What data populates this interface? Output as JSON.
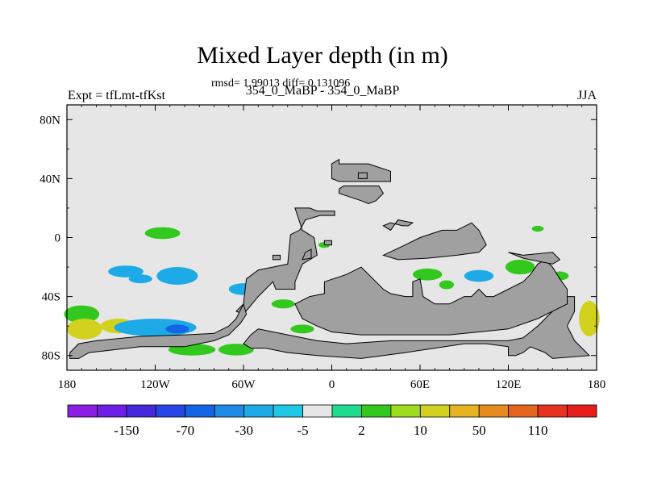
{
  "chart_data": {
    "type": "heatmap",
    "title": "Mixed Layer depth (in m)",
    "subtitle": "rmsd= 1.99013 diff= 0.131096",
    "left_label": "Expt = tfLmt-tfKst",
    "center_label": "354_0_MaBP - 354_0_MaBP",
    "right_label": "JJA",
    "x_range": [
      -180,
      180
    ],
    "y_range": [
      -90,
      90
    ],
    "x_ticks": [
      {
        "value": -180,
        "label": "180"
      },
      {
        "value": -120,
        "label": "120W"
      },
      {
        "value": -60,
        "label": "60W"
      },
      {
        "value": 0,
        "label": "0"
      },
      {
        "value": 60,
        "label": "60E"
      },
      {
        "value": 120,
        "label": "120E"
      },
      {
        "value": 180,
        "label": "180"
      }
    ],
    "y_ticks": [
      {
        "value": 80,
        "label": "80N"
      },
      {
        "value": 40,
        "label": "40N"
      },
      {
        "value": 0,
        "label": "0"
      },
      {
        "value": -40,
        "label": "40S"
      },
      {
        "value": -80,
        "label": "80S"
      }
    ],
    "colorbar": {
      "colors": [
        "#8c1ee6",
        "#6e1ee6",
        "#4628dc",
        "#2846e6",
        "#1464e6",
        "#1e8ce6",
        "#1eaae6",
        "#1ec8e6",
        "#e6e6e6",
        "#1edc8c",
        "#32c81e",
        "#a0dc1e",
        "#d2d21e",
        "#e6b41e",
        "#e68c1e",
        "#e6641e",
        "#e6321e",
        "#e61e1e"
      ],
      "labels": [
        "-150",
        "-70",
        "-30",
        "-5",
        "2",
        "10",
        "50",
        "110"
      ]
    },
    "land_polygons": [
      [
        [
          0,
          50
        ],
        [
          5,
          53
        ],
        [
          5,
          50
        ],
        [
          25,
          50
        ],
        [
          40,
          45
        ],
        [
          40,
          38
        ],
        [
          5,
          38
        ],
        [
          0,
          40
        ]
      ],
      [
        [
          -25,
          20
        ],
        [
          -15,
          20
        ],
        [
          -10,
          18
        ],
        [
          2,
          18
        ],
        [
          2,
          15
        ],
        [
          -8,
          15
        ],
        [
          -18,
          12
        ],
        [
          -20,
          8
        ],
        [
          -22,
          5
        ],
        [
          -28,
          2
        ],
        [
          -30,
          -18
        ],
        [
          -40,
          -20
        ],
        [
          -50,
          -22
        ],
        [
          -58,
          -28
        ],
        [
          -60,
          -45
        ],
        [
          -65,
          -50
        ],
        [
          -60,
          -52
        ],
        [
          -50,
          -40
        ],
        [
          -40,
          -30
        ],
        [
          -38,
          -35
        ],
        [
          -25,
          -35
        ],
        [
          -25,
          -30
        ],
        [
          -20,
          -18
        ],
        [
          -10,
          -12
        ],
        [
          -12,
          0
        ],
        [
          -20,
          5
        ]
      ],
      [
        [
          -58,
          -52
        ],
        [
          -60,
          -45
        ],
        [
          -65,
          -55
        ],
        [
          -70,
          -60
        ],
        [
          -80,
          -65
        ],
        [
          -100,
          -66
        ],
        [
          -130,
          -67
        ],
        [
          -160,
          -70
        ],
        [
          -172,
          -72
        ],
        [
          -178,
          -78
        ],
        [
          -178,
          -82
        ],
        [
          -172,
          -82
        ],
        [
          -165,
          -78
        ],
        [
          -130,
          -74
        ],
        [
          -100,
          -74
        ],
        [
          -80,
          -70
        ],
        [
          -70,
          -66
        ],
        [
          -62,
          -58
        ]
      ],
      [
        [
          -50,
          -62
        ],
        [
          -30,
          -66
        ],
        [
          -10,
          -70
        ],
        [
          10,
          -72
        ],
        [
          40,
          -70
        ],
        [
          70,
          -70
        ],
        [
          100,
          -70
        ],
        [
          120,
          -70
        ],
        [
          130,
          -68
        ],
        [
          135,
          -64
        ],
        [
          140,
          -60
        ],
        [
          145,
          -55
        ],
        [
          150,
          -50
        ],
        [
          155,
          -45
        ],
        [
          160,
          -40
        ],
        [
          165,
          -40
        ],
        [
          165,
          -50
        ],
        [
          160,
          -60
        ],
        [
          165,
          -70
        ],
        [
          170,
          -75
        ],
        [
          175,
          -80
        ],
        [
          150,
          -82
        ],
        [
          145,
          -78
        ],
        [
          135,
          -74
        ],
        [
          130,
          -78
        ],
        [
          125,
          -80
        ],
        [
          120,
          -80
        ],
        [
          120,
          -74
        ],
        [
          105,
          -72
        ],
        [
          90,
          -72
        ],
        [
          70,
          -75
        ],
        [
          50,
          -78
        ],
        [
          20,
          -82
        ],
        [
          -10,
          -80
        ],
        [
          -30,
          -78
        ],
        [
          -45,
          -75
        ],
        [
          -55,
          -75
        ],
        [
          -60,
          -72
        ],
        [
          -55,
          -66
        ]
      ],
      [
        [
          -5,
          -30
        ],
        [
          10,
          -25
        ],
        [
          20,
          -20
        ],
        [
          30,
          -30
        ],
        [
          35,
          -35
        ],
        [
          40,
          -38
        ],
        [
          50,
          -40
        ],
        [
          55,
          -40
        ],
        [
          55,
          -30
        ],
        [
          60,
          -28
        ],
        [
          62,
          -40
        ],
        [
          70,
          -45
        ],
        [
          80,
          -45
        ],
        [
          90,
          -40
        ],
        [
          95,
          -40
        ],
        [
          100,
          -35
        ],
        [
          105,
          -40
        ],
        [
          110,
          -40
        ],
        [
          120,
          -35
        ],
        [
          130,
          -30
        ],
        [
          135,
          -25
        ],
        [
          140,
          -18
        ],
        [
          145,
          -15
        ],
        [
          150,
          -20
        ],
        [
          155,
          -28
        ],
        [
          160,
          -35
        ],
        [
          160,
          -45
        ],
        [
          140,
          -55
        ],
        [
          120,
          -62
        ],
        [
          100,
          -64
        ],
        [
          80,
          -66
        ],
        [
          60,
          -66
        ],
        [
          40,
          -66
        ],
        [
          20,
          -66
        ],
        [
          0,
          -64
        ],
        [
          -10,
          -60
        ],
        [
          -20,
          -55
        ],
        [
          -25,
          -45
        ],
        [
          -15,
          -40
        ],
        [
          -5,
          -38
        ]
      ],
      [
        [
          35,
          -12
        ],
        [
          50,
          -5
        ],
        [
          60,
          0
        ],
        [
          75,
          5
        ],
        [
          85,
          5
        ],
        [
          95,
          10
        ],
        [
          100,
          5
        ],
        [
          105,
          -5
        ],
        [
          100,
          -10
        ],
        [
          85,
          -12
        ],
        [
          65,
          -14
        ],
        [
          45,
          -15
        ]
      ],
      [
        [
          120,
          -10
        ],
        [
          130,
          -12
        ],
        [
          150,
          -10
        ],
        [
          155,
          -15
        ],
        [
          150,
          -18
        ],
        [
          140,
          -16
        ],
        [
          130,
          -14
        ]
      ],
      [
        [
          35,
          8
        ],
        [
          40,
          5
        ],
        [
          45,
          12
        ],
        [
          55,
          10
        ],
        [
          52,
          8
        ],
        [
          48,
          8
        ],
        [
          40,
          10
        ]
      ],
      [
        [
          5,
          30
        ],
        [
          20,
          25
        ],
        [
          25,
          23
        ],
        [
          30,
          25
        ],
        [
          35,
          30
        ],
        [
          32,
          35
        ],
        [
          25,
          35
        ],
        [
          15,
          35
        ],
        [
          8,
          35
        ],
        [
          5,
          33
        ]
      ],
      [
        [
          -20,
          -15
        ],
        [
          -18,
          -10
        ],
        [
          -14,
          -8
        ],
        [
          -14,
          -14
        ]
      ],
      [
        [
          -40,
          -15
        ],
        [
          -35,
          -15
        ],
        [
          -35,
          -12
        ],
        [
          -40,
          -12
        ]
      ],
      [
        [
          -5,
          -5
        ],
        [
          0,
          -5
        ],
        [
          0,
          -2
        ],
        [
          -5,
          -2
        ]
      ],
      [
        [
          18,
          40
        ],
        [
          24,
          40
        ],
        [
          24,
          44
        ],
        [
          18,
          44
        ]
      ]
    ],
    "anomaly_patches": [
      {
        "v": 10,
        "c": [
          -115,
          3
        ],
        "r": [
          12,
          4
        ]
      },
      {
        "v": 2,
        "c": [
          -90,
          -2
        ],
        "r": [
          6,
          3
        ]
      },
      {
        "v": -5,
        "c": [
          -140,
          -23
        ],
        "r": [
          12,
          4
        ]
      },
      {
        "v": -5,
        "c": [
          -130,
          -28
        ],
        "r": [
          8,
          3
        ]
      },
      {
        "v": -5,
        "c": [
          -105,
          -26
        ],
        "r": [
          14,
          6
        ]
      },
      {
        "v": -5,
        "c": [
          -60,
          -35
        ],
        "r": [
          10,
          4
        ]
      },
      {
        "v": 10,
        "c": [
          -33,
          -45
        ],
        "r": [
          8,
          3
        ]
      },
      {
        "v": 10,
        "c": [
          -170,
          -52
        ],
        "r": [
          12,
          6
        ]
      },
      {
        "v": 50,
        "c": [
          -168,
          -62
        ],
        "r": [
          12,
          7
        ]
      },
      {
        "v": 50,
        "c": [
          -145,
          -60
        ],
        "r": [
          12,
          5
        ]
      },
      {
        "v": -5,
        "c": [
          -120,
          -61
        ],
        "r": [
          28,
          6
        ]
      },
      {
        "v": -30,
        "c": [
          -105,
          -62
        ],
        "r": [
          8,
          3
        ]
      },
      {
        "v": 10,
        "c": [
          -95,
          -76
        ],
        "r": [
          16,
          4
        ]
      },
      {
        "v": 10,
        "c": [
          -65,
          -76
        ],
        "r": [
          12,
          4
        ]
      },
      {
        "v": 10,
        "c": [
          -20,
          -62
        ],
        "r": [
          8,
          3
        ]
      },
      {
        "v": 10,
        "c": [
          20,
          -33
        ],
        "r": [
          8,
          3
        ]
      },
      {
        "v": 10,
        "c": [
          65,
          -25
        ],
        "r": [
          10,
          4
        ]
      },
      {
        "v": 10,
        "c": [
          78,
          -32
        ],
        "r": [
          5,
          3
        ]
      },
      {
        "v": -5,
        "c": [
          100,
          -26
        ],
        "r": [
          10,
          4
        ]
      },
      {
        "v": 10,
        "c": [
          128,
          -20
        ],
        "r": [
          10,
          5
        ]
      },
      {
        "v": 10,
        "c": [
          155,
          -26
        ],
        "r": [
          6,
          3
        ]
      },
      {
        "v": 50,
        "c": [
          175,
          -55
        ],
        "r": [
          7,
          12
        ]
      },
      {
        "v": 10,
        "c": [
          -5,
          -5
        ],
        "r": [
          4,
          2
        ]
      },
      {
        "v": 10,
        "c": [
          140,
          6
        ],
        "r": [
          4,
          2
        ]
      },
      {
        "v": 10,
        "c": [
          58,
          -48
        ],
        "r": [
          6,
          2
        ]
      }
    ]
  }
}
